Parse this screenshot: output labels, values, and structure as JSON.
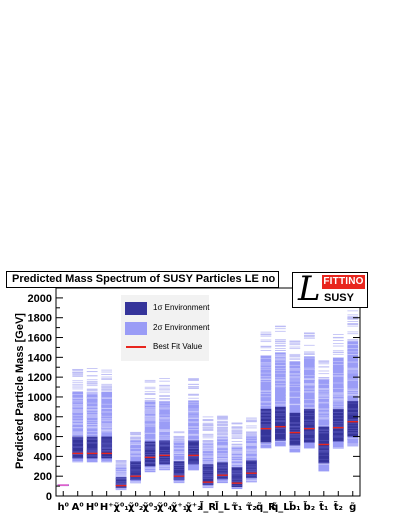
{
  "chart_data": {
    "type": "range",
    "title": "Predicted Mass Spectrum of SUSY Particles LE no Ω",
    "ylabel": "Predicted Particle Mass [GeV]",
    "ylim": [
      0,
      2100
    ],
    "yticks": [
      0,
      200,
      400,
      600,
      800,
      1000,
      1200,
      1400,
      1600,
      1800,
      2000
    ],
    "colors": {
      "one_sigma": "#35349a",
      "two_sigma": "#9a9cf6",
      "best_fit": "#e8261e",
      "samples": "#bcbcf5",
      "light_higgs": "#ff66cc"
    },
    "legend": {
      "placement": "top-center",
      "entries": [
        "1σ Environment",
        "2σ Environment",
        "Best Fit Value"
      ]
    },
    "particles": [
      {
        "label": "h⁰",
        "best": 110,
        "s1": [
          106,
          114
        ],
        "s2": [
          104,
          117
        ],
        "max": 117
      },
      {
        "label": "A⁰",
        "best": 430,
        "s1": [
          380,
          600
        ],
        "s2": [
          340,
          1050
        ],
        "max": 1280
      },
      {
        "label": "H⁰",
        "best": 430,
        "s1": [
          380,
          600
        ],
        "s2": [
          340,
          1050
        ],
        "max": 1290
      },
      {
        "label": "H⁺",
        "best": 430,
        "s1": [
          380,
          600
        ],
        "s2": [
          340,
          1050
        ],
        "max": 1290
      },
      {
        "label": "χ̃⁰₁",
        "best": 105,
        "s1": [
          80,
          190
        ],
        "s2": [
          60,
          300
        ],
        "max": 360
      },
      {
        "label": "χ̃⁰₂",
        "best": 200,
        "s1": [
          160,
          350
        ],
        "s2": [
          130,
          560
        ],
        "max": 650
      },
      {
        "label": "χ̃⁰₃",
        "best": 390,
        "s1": [
          300,
          550
        ],
        "s2": [
          240,
          950
        ],
        "max": 1180
      },
      {
        "label": "χ̃⁰₄",
        "best": 410,
        "s1": [
          320,
          560
        ],
        "s2": [
          260,
          960
        ],
        "max": 1190
      },
      {
        "label": "χ̃⁺₁",
        "best": 200,
        "s1": [
          160,
          350
        ],
        "s2": [
          130,
          560
        ],
        "max": 650
      },
      {
        "label": "χ̃⁺₂",
        "best": 410,
        "s1": [
          320,
          560
        ],
        "s2": [
          260,
          960
        ],
        "max": 1190
      },
      {
        "label": "l̃_R",
        "best": 140,
        "s1": [
          110,
          320
        ],
        "s2": [
          80,
          540
        ],
        "max": 800
      },
      {
        "label": "l̃_L",
        "best": 210,
        "s1": [
          170,
          340
        ],
        "s2": [
          130,
          600
        ],
        "max": 840
      },
      {
        "label": "τ̃₁",
        "best": 130,
        "s1": [
          90,
          290
        ],
        "s2": [
          70,
          500
        ],
        "max": 740
      },
      {
        "label": "τ̃₂",
        "best": 230,
        "s1": [
          180,
          360
        ],
        "s2": [
          140,
          620
        ],
        "max": 790
      },
      {
        "label": "q̃_R",
        "best": 680,
        "s1": [
          540,
          880
        ],
        "s2": [
          480,
          1420
        ],
        "max": 1660
      },
      {
        "label": "q̃_L",
        "best": 700,
        "s1": [
          560,
          900
        ],
        "s2": [
          500,
          1450
        ],
        "max": 1740
      },
      {
        "label": "b̃₁",
        "best": 640,
        "s1": [
          510,
          840
        ],
        "s2": [
          440,
          1360
        ],
        "max": 1620
      },
      {
        "label": "b̃₂",
        "best": 680,
        "s1": [
          540,
          880
        ],
        "s2": [
          480,
          1410
        ],
        "max": 1660
      },
      {
        "label": "t̃₁",
        "best": 520,
        "s1": [
          330,
          700
        ],
        "s2": [
          250,
          1180
        ],
        "max": 1400
      },
      {
        "label": "t̃₂",
        "best": 690,
        "s1": [
          550,
          880
        ],
        "s2": [
          480,
          1400
        ],
        "max": 1660
      },
      {
        "label": "g̃",
        "best": 750,
        "s1": [
          600,
          960
        ],
        "s2": [
          500,
          1560
        ],
        "max": 1880
      }
    ]
  },
  "logo": {
    "top_text": "FITTINO",
    "bottom_text": "SUSY"
  }
}
